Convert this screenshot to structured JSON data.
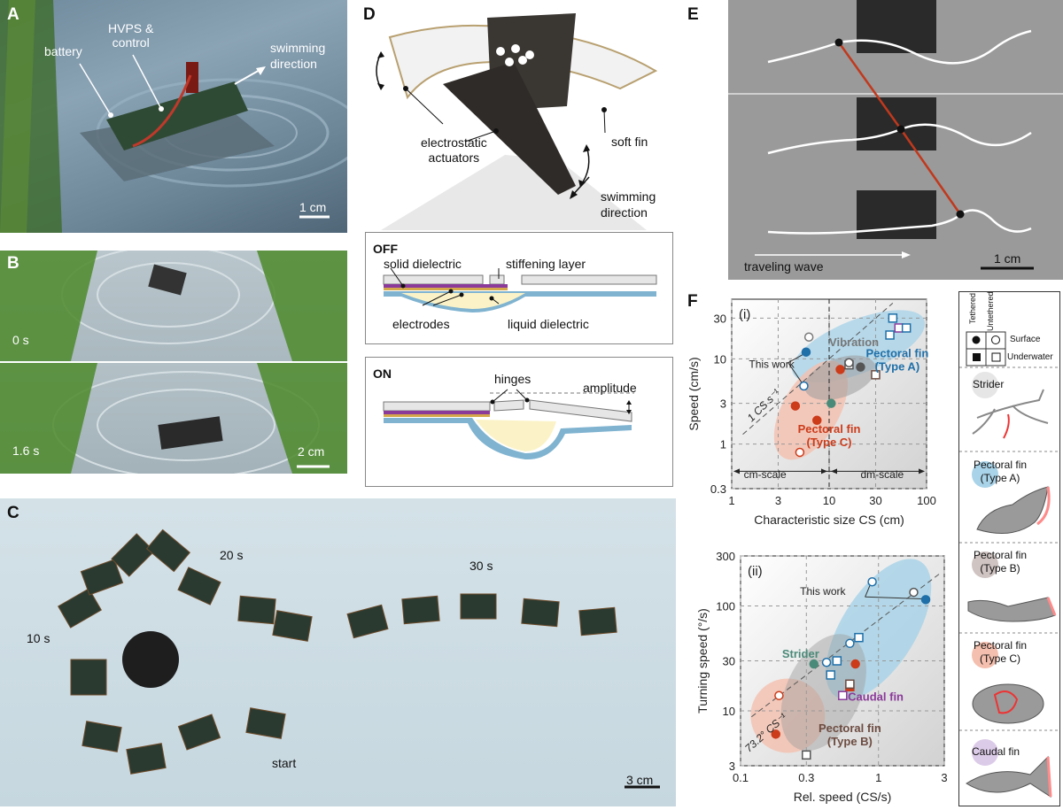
{
  "panels": {
    "A": {
      "letter": "A",
      "battery": "battery",
      "hvps": "HVPS &\ncontrol",
      "swim": "swimming\ndirection",
      "scale": "1 cm"
    },
    "B": {
      "letter": "B",
      "t0": "0 s",
      "t1": "1.6 s",
      "scale": "2 cm"
    },
    "C": {
      "letter": "C",
      "t10": "10 s",
      "t20": "20 s",
      "t30": "30 s",
      "start": "start",
      "scale": "3 cm"
    },
    "D": {
      "letter": "D",
      "actuators": "electrostatic\nactuators",
      "softfin": "soft fin",
      "swim": "swimming\ndirection",
      "off": "OFF",
      "solid": "solid dielectric",
      "stiff": "stiffening layer",
      "electrodes": "electrodes",
      "liquid": "liquid dielectric",
      "on": "ON",
      "hinges": "hinges",
      "amplitude": "amplitude"
    },
    "E": {
      "letter": "E",
      "wave": "traveling wave",
      "scale": "1 cm"
    },
    "F": {
      "letter": "F"
    }
  },
  "legend": {
    "tethered": "Tethered",
    "untethered": "Untethered",
    "surface": "Surface",
    "underwater": "Underwater",
    "items": [
      "Strider",
      "Pectoral fin\n(Type A)",
      "Pectoral fin\n(Type B)",
      "Pectoral fin\n(Type C)",
      "Caudal fin"
    ],
    "colors": {
      "strider": "#e6e6e6",
      "typeA": "#a9d3e8",
      "typeB": "#cfc4c2",
      "typeC": "#f4bfae",
      "caudal": "#dccbe8"
    }
  },
  "chart_data": [
    {
      "type": "scatter",
      "id": "i",
      "panel_label": "(i)",
      "xlabel": "Characteristic size CS (cm)",
      "ylabel": "Speed (cm/s)",
      "log_x": true,
      "log_y": true,
      "xlim": [
        1,
        100
      ],
      "ylim": [
        0.3,
        50
      ],
      "x_ticks": [
        "1",
        "3",
        "10",
        "30",
        "100"
      ],
      "y_ticks": [
        "0.3",
        "1",
        "3",
        "10",
        "30"
      ],
      "annotations": {
        "this_work": "This work",
        "cs_line": "1 CS s⁻¹",
        "cm_scale": "cm-scale",
        "dm_scale": "dm-scale",
        "vibration": "Vibration",
        "pectoral_a": "Pectoral fin\n(Type A)",
        "pectoral_c": "Pectoral fin\n(Type C)"
      },
      "points": [
        {
          "x": 5.8,
          "y": 12,
          "color": "#1f6fa8",
          "marker": "circle",
          "filled": true
        },
        {
          "x": 5.5,
          "y": 4.8,
          "color": "#1f6fa8",
          "marker": "circle",
          "filled": false
        },
        {
          "x": 6.2,
          "y": 18,
          "color": "#7a7a7a",
          "marker": "circle",
          "filled": false
        },
        {
          "x": 4.5,
          "y": 2.8,
          "color": "#cc3b1a",
          "marker": "circle",
          "filled": true
        },
        {
          "x": 7.5,
          "y": 1.9,
          "color": "#cc3b1a",
          "marker": "circle",
          "filled": true
        },
        {
          "x": 5.0,
          "y": 0.8,
          "color": "#cc3b1a",
          "marker": "circle",
          "filled": false
        },
        {
          "x": 13,
          "y": 7.5,
          "color": "#cc3b1a",
          "marker": "circle",
          "filled": true
        },
        {
          "x": 10.5,
          "y": 3.0,
          "color": "#4a8a78",
          "marker": "circle",
          "filled": true
        },
        {
          "x": 16,
          "y": 8.5,
          "color": "#555555",
          "marker": "square",
          "filled": false
        },
        {
          "x": 16,
          "y": 9.0,
          "color": "#555555",
          "marker": "circle",
          "filled": false
        },
        {
          "x": 21,
          "y": 8.0,
          "color": "#555555",
          "marker": "circle",
          "filled": true
        },
        {
          "x": 30,
          "y": 6.5,
          "color": "#6d4c41",
          "marker": "square",
          "filled": false
        },
        {
          "x": 45,
          "y": 30,
          "color": "#1f6fa8",
          "marker": "square",
          "filled": false
        },
        {
          "x": 52,
          "y": 23,
          "color": "#8b3a9a",
          "marker": "square",
          "filled": false
        },
        {
          "x": 62,
          "y": 23,
          "color": "#1f6fa8",
          "marker": "square",
          "filled": false
        },
        {
          "x": 42,
          "y": 19,
          "color": "#1f6fa8",
          "marker": "square",
          "filled": false
        }
      ]
    },
    {
      "type": "scatter",
      "id": "ii",
      "panel_label": "(ii)",
      "xlabel": "Rel. speed (CS/s)",
      "ylabel": "Turning speed (°/s)",
      "log_x": true,
      "log_y": true,
      "xlim": [
        0.1,
        3
      ],
      "ylim": [
        3,
        300
      ],
      "x_ticks": [
        "0.1",
        "0.3",
        "1",
        "3"
      ],
      "y_ticks": [
        "3",
        "10",
        "30",
        "100",
        "300"
      ],
      "annotations": {
        "this_work": "This work",
        "deg_line": "73.2° CS⁻¹",
        "strider": "Strider",
        "caudal": "Caudal fin",
        "pectoral_b": "Pectoral fin\n(Type B)"
      },
      "points": [
        {
          "x": 0.9,
          "y": 170,
          "color": "#1f6fa8",
          "marker": "circle",
          "filled": false
        },
        {
          "x": 1.8,
          "y": 135,
          "color": "#555555",
          "marker": "circle",
          "filled": false
        },
        {
          "x": 2.2,
          "y": 115,
          "color": "#1f6fa8",
          "marker": "circle",
          "filled": true
        },
        {
          "x": 0.62,
          "y": 44,
          "color": "#1f6fa8",
          "marker": "circle",
          "filled": false
        },
        {
          "x": 0.72,
          "y": 50,
          "color": "#1f6fa8",
          "marker": "square",
          "filled": false
        },
        {
          "x": 0.34,
          "y": 28,
          "color": "#4a8a78",
          "marker": "circle",
          "filled": true
        },
        {
          "x": 0.42,
          "y": 29,
          "color": "#1f6fa8",
          "marker": "circle",
          "filled": false
        },
        {
          "x": 0.5,
          "y": 30,
          "color": "#1f6fa8",
          "marker": "square",
          "filled": false
        },
        {
          "x": 0.45,
          "y": 22,
          "color": "#1f6fa8",
          "marker": "square",
          "filled": false
        },
        {
          "x": 0.68,
          "y": 28,
          "color": "#cc3b1a",
          "marker": "circle",
          "filled": true
        },
        {
          "x": 0.62,
          "y": 17,
          "color": "#cc3b1a",
          "marker": "square",
          "filled": true
        },
        {
          "x": 0.62,
          "y": 18,
          "color": "#6d4c41",
          "marker": "square",
          "filled": false
        },
        {
          "x": 0.55,
          "y": 14,
          "color": "#8b3a9a",
          "marker": "square",
          "filled": false
        },
        {
          "x": 0.19,
          "y": 14,
          "color": "#cc3b1a",
          "marker": "circle",
          "filled": false
        },
        {
          "x": 0.18,
          "y": 6,
          "color": "#cc3b1a",
          "marker": "circle",
          "filled": true
        },
        {
          "x": 0.3,
          "y": 3.8,
          "color": "#555555",
          "marker": "square",
          "filled": false
        }
      ]
    }
  ]
}
